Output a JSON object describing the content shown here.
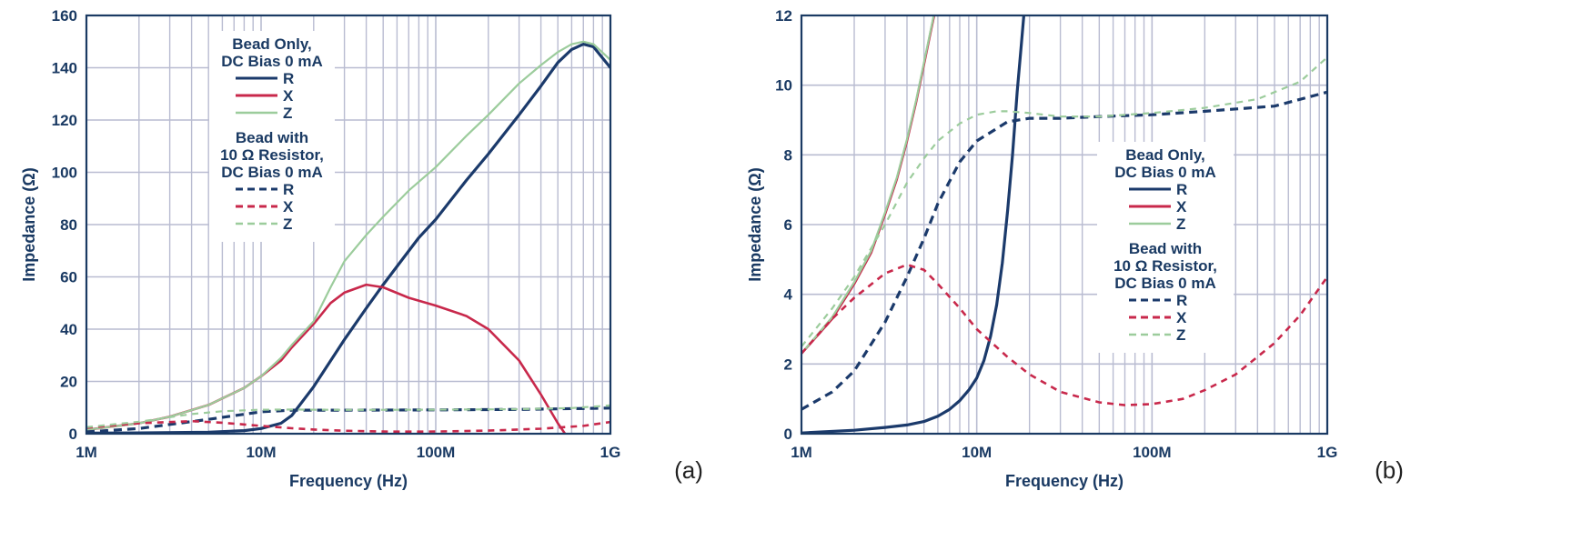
{
  "colors": {
    "navy": "#1b3a6b",
    "red": "#c8284b",
    "green": "#9ccc9c",
    "grid": "#b9bcd1",
    "frame": "#1a3a63",
    "legend_bg": "#ffffff"
  },
  "chart_data": [
    {
      "type": "line",
      "panel_label": "(a)",
      "xlabel": "Frequency (Hz)",
      "ylabel": "Impedance (Ω)",
      "x_scale": "log",
      "xlim": [
        1000000,
        1000000000
      ],
      "ylim": [
        0,
        160
      ],
      "x_ticks": [
        1000000,
        10000000,
        100000000,
        1000000000
      ],
      "x_tick_labels": [
        "1M",
        "10M",
        "100M",
        "1G"
      ],
      "y_ticks": [
        0,
        20,
        40,
        60,
        80,
        100,
        120,
        140,
        160
      ],
      "y_tick_labels": [
        "0",
        "20",
        "40",
        "60",
        "80",
        "100",
        "120",
        "140",
        "160"
      ],
      "grid": true,
      "legend": {
        "placement": "upper-left",
        "groups": [
          {
            "title": [
              "Bead Only,",
              "DC Bias 0 mA"
            ],
            "entries": [
              {
                "label": "R",
                "color": "navy",
                "dash": "solid"
              },
              {
                "label": "X",
                "color": "red",
                "dash": "solid"
              },
              {
                "label": "Z",
                "color": "green",
                "dash": "solid"
              }
            ]
          },
          {
            "title": [
              "Bead with",
              "10 Ω Resistor,",
              "DC Bias 0 mA"
            ],
            "entries": [
              {
                "label": "R",
                "color": "navy",
                "dash": "dashed"
              },
              {
                "label": "X",
                "color": "red",
                "dash": "dashed"
              },
              {
                "label": "Z",
                "color": "green",
                "dash": "dashed"
              }
            ]
          }
        ]
      },
      "series": [
        {
          "group": "Bead Only, DC Bias 0 mA",
          "label": "R",
          "color": "navy",
          "dash": "solid",
          "width": 3.2,
          "x": [
            1000000,
            2000000,
            5000000,
            8000000,
            10000000,
            13000000,
            15000000,
            20000000,
            30000000,
            40000000,
            50000000,
            60000000,
            80000000,
            100000000,
            150000000,
            200000000,
            300000000,
            400000000,
            500000000,
            600000000,
            700000000,
            800000000,
            1000000000
          ],
          "y": [
            0.2,
            0.3,
            0.6,
            1.2,
            2,
            4,
            7,
            18,
            36,
            48,
            57,
            64,
            75,
            82,
            97,
            107,
            122,
            133,
            142,
            147,
            149,
            148,
            140
          ]
        },
        {
          "group": "Bead Only, DC Bias 0 mA",
          "label": "X",
          "color": "red",
          "dash": "solid",
          "width": 2.6,
          "x": [
            1000000,
            2000000,
            3000000,
            5000000,
            8000000,
            10000000,
            13000000,
            15000000,
            20000000,
            25000000,
            30000000,
            40000000,
            50000000,
            70000000,
            100000000,
            150000000,
            200000000,
            300000000,
            400000000,
            500000000,
            550000000
          ],
          "y": [
            1.5,
            4,
            6.5,
            11,
            17.5,
            22,
            28,
            33,
            42,
            50,
            54,
            57,
            56,
            52,
            49,
            45,
            40,
            28,
            15,
            4,
            0
          ]
        },
        {
          "group": "Bead Only, DC Bias 0 mA",
          "label": "Z",
          "color": "green",
          "dash": "solid",
          "width": 2.2,
          "x": [
            1000000,
            2000000,
            3000000,
            5000000,
            8000000,
            10000000,
            13000000,
            15000000,
            20000000,
            25000000,
            30000000,
            40000000,
            50000000,
            70000000,
            100000000,
            150000000,
            200000000,
            300000000,
            400000000,
            500000000,
            600000000,
            700000000,
            800000000,
            1000000000
          ],
          "y": [
            1.5,
            4,
            6.5,
            11,
            17.5,
            22,
            29,
            34,
            43,
            56,
            66,
            76,
            83,
            93,
            102,
            114,
            122,
            134,
            141,
            146,
            149,
            150,
            149,
            143
          ]
        },
        {
          "group": "Bead with 10 Ω Resistor, DC Bias 0 mA",
          "label": "R",
          "color": "navy",
          "dash": "dashed",
          "width": 3.2,
          "x": [
            1000000,
            2000000,
            5000000,
            10000000,
            15000000,
            30000000,
            100000000,
            300000000,
            1000000000
          ],
          "y": [
            0.7,
            2,
            5.5,
            8.4,
            9,
            9,
            9.1,
            9.3,
            9.8
          ]
        },
        {
          "group": "Bead with 10 Ω Resistor, DC Bias 0 mA",
          "label": "X",
          "color": "red",
          "dash": "dashed",
          "width": 2.6,
          "x": [
            1000000,
            2000000,
            4000000,
            6000000,
            10000000,
            15000000,
            20000000,
            30000000,
            50000000,
            70000000,
            100000000,
            200000000,
            400000000,
            700000000,
            1000000000
          ],
          "y": [
            2.3,
            4,
            4.8,
            4.2,
            3,
            2.1,
            1.6,
            1.15,
            0.85,
            0.8,
            0.85,
            1.2,
            1.9,
            3,
            4.5
          ]
        },
        {
          "group": "Bead with 10 Ω Resistor, DC Bias 0 mA",
          "label": "Z",
          "color": "green",
          "dash": "dashed",
          "width": 2.2,
          "x": [
            1000000,
            2000000,
            4000000,
            6000000,
            10000000,
            15000000,
            20000000,
            30000000,
            100000000,
            300000000,
            600000000,
            1000000000
          ],
          "y": [
            2.5,
            4.6,
            7.5,
            8.6,
            9.2,
            9.25,
            9.2,
            9.1,
            9.2,
            9.4,
            9.8,
            10.8
          ]
        }
      ]
    },
    {
      "type": "line",
      "panel_label": "(b)",
      "xlabel": "Frequency (Hz)",
      "ylabel": "Impedance (Ω)",
      "x_scale": "log",
      "xlim": [
        1000000,
        1000000000
      ],
      "ylim": [
        0,
        12
      ],
      "x_ticks": [
        1000000,
        10000000,
        100000000,
        1000000000
      ],
      "x_tick_labels": [
        "1M",
        "10M",
        "100M",
        "1G"
      ],
      "y_ticks": [
        0,
        2,
        4,
        6,
        8,
        10,
        12
      ],
      "y_tick_labels": [
        "0",
        "2",
        "4",
        "6",
        "8",
        "10",
        "12"
      ],
      "grid": true,
      "legend": {
        "placement": "center-right",
        "groups": [
          {
            "title": [
              "Bead Only,",
              "DC Bias 0 mA"
            ],
            "entries": [
              {
                "label": "R",
                "color": "navy",
                "dash": "solid"
              },
              {
                "label": "X",
                "color": "red",
                "dash": "solid"
              },
              {
                "label": "Z",
                "color": "green",
                "dash": "solid"
              }
            ]
          },
          {
            "title": [
              "Bead with",
              "10 Ω Resistor,",
              "DC Bias 0 mA"
            ],
            "entries": [
              {
                "label": "R",
                "color": "navy",
                "dash": "dashed"
              },
              {
                "label": "X",
                "color": "red",
                "dash": "dashed"
              },
              {
                "label": "Z",
                "color": "green",
                "dash": "dashed"
              }
            ]
          }
        ]
      },
      "series": [
        {
          "group": "Bead Only, DC Bias 0 mA",
          "label": "R",
          "color": "navy",
          "dash": "solid",
          "width": 3.2,
          "x": [
            1000000,
            2000000,
            3000000,
            4000000,
            5000000,
            6000000,
            7000000,
            8000000,
            9000000,
            10000000,
            11000000,
            12000000,
            13000000,
            14000000,
            15000000,
            16000000,
            17000000,
            18000000,
            19000000
          ],
          "y": [
            0.02,
            0.1,
            0.18,
            0.25,
            0.35,
            0.5,
            0.7,
            0.95,
            1.25,
            1.6,
            2.1,
            2.8,
            3.7,
            4.9,
            6.4,
            8,
            9.8,
            11.2,
            12.6
          ]
        },
        {
          "group": "Bead Only, DC Bias 0 mA",
          "label": "X",
          "color": "red",
          "dash": "solid",
          "width": 2.6,
          "x": [
            1000000,
            1500000,
            2000000,
            2500000,
            3000000,
            3500000,
            4000000,
            4500000,
            5000000,
            5500000,
            6000000,
            6300000
          ],
          "y": [
            2.3,
            3.3,
            4.3,
            5.2,
            6.3,
            7.3,
            8.4,
            9.5,
            10.6,
            11.6,
            12.5,
            13
          ]
        },
        {
          "group": "Bead Only, DC Bias 0 mA",
          "label": "Z",
          "color": "green",
          "dash": "solid",
          "width": 2.2,
          "x": [
            1000000,
            1500000,
            2000000,
            2500000,
            3000000,
            3500000,
            4000000,
            4500000,
            5000000,
            5500000,
            6000000,
            6300000
          ],
          "y": [
            2.3,
            3.35,
            4.35,
            5.25,
            6.35,
            7.35,
            8.45,
            9.55,
            10.65,
            11.65,
            12.55,
            13.1
          ]
        },
        {
          "group": "Bead with 10 Ω Resistor, DC Bias 0 mA",
          "label": "R",
          "color": "navy",
          "dash": "dashed",
          "width": 3.2,
          "x": [
            1000000,
            1500000,
            2000000,
            3000000,
            4000000,
            5000000,
            6000000,
            8000000,
            10000000,
            15000000,
            20000000,
            30000000,
            50000000,
            100000000,
            200000000,
            500000000,
            1000000000
          ],
          "y": [
            0.7,
            1.2,
            1.8,
            3.2,
            4.5,
            5.6,
            6.6,
            7.8,
            8.4,
            8.95,
            9.05,
            9.05,
            9.1,
            9.15,
            9.25,
            9.4,
            9.8
          ]
        },
        {
          "group": "Bead with 10 Ω Resistor, DC Bias 0 mA",
          "label": "X",
          "color": "red",
          "dash": "dashed",
          "width": 2.6,
          "x": [
            1000000,
            1500000,
            2000000,
            3000000,
            4000000,
            5000000,
            6000000,
            8000000,
            10000000,
            15000000,
            20000000,
            30000000,
            50000000,
            70000000,
            100000000,
            150000000,
            200000000,
            300000000,
            500000000,
            700000000,
            1000000000
          ],
          "y": [
            2.3,
            3.3,
            3.9,
            4.6,
            4.85,
            4.7,
            4.3,
            3.6,
            3.0,
            2.2,
            1.7,
            1.2,
            0.9,
            0.82,
            0.85,
            1.0,
            1.25,
            1.7,
            2.6,
            3.4,
            4.5
          ]
        },
        {
          "group": "Bead with 10 Ω Resistor, DC Bias 0 mA",
          "label": "Z",
          "color": "green",
          "dash": "dashed",
          "width": 2.2,
          "x": [
            1000000,
            1500000,
            2000000,
            3000000,
            4000000,
            5000000,
            6000000,
            8000000,
            10000000,
            13000000,
            15000000,
            20000000,
            30000000,
            50000000,
            100000000,
            200000000,
            400000000,
            700000000,
            1000000000
          ],
          "y": [
            2.5,
            3.6,
            4.5,
            6.0,
            7.2,
            7.9,
            8.4,
            8.9,
            9.15,
            9.25,
            9.25,
            9.2,
            9.1,
            9.1,
            9.2,
            9.35,
            9.6,
            10.1,
            10.8
          ]
        }
      ]
    }
  ]
}
